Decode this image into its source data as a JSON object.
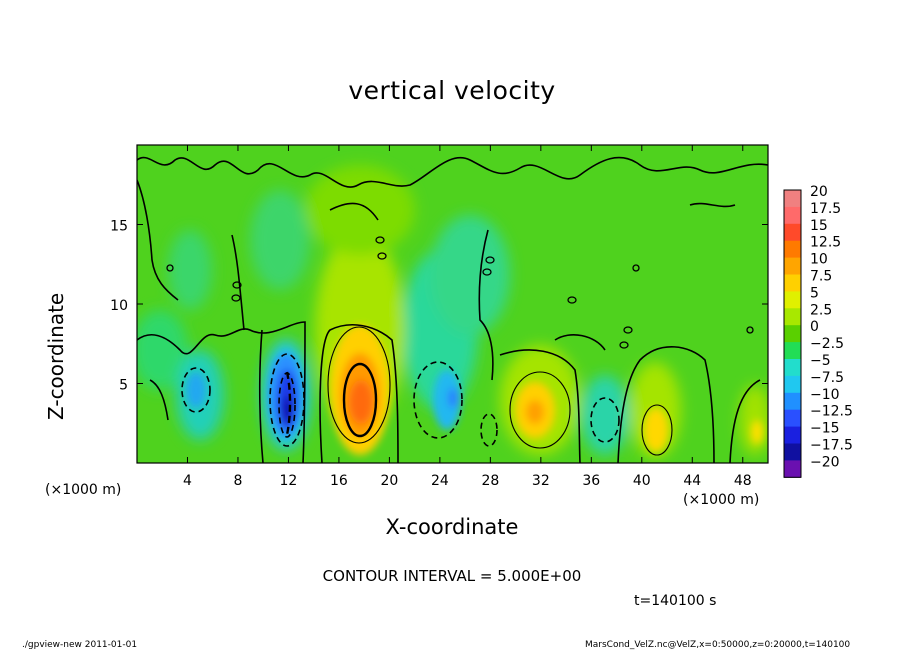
{
  "chart_data": {
    "type": "heatmap",
    "title": "vertical velocity",
    "xlabel": "X-coordinate",
    "ylabel": "Z-coordinate",
    "x_unit_label": "(×1000 m)",
    "xlim": [
      0,
      50
    ],
    "ylim": [
      0,
      20
    ],
    "xticks": [
      4,
      8,
      12,
      16,
      20,
      24,
      28,
      32,
      36,
      40,
      44,
      48
    ],
    "yticks": [
      5,
      10,
      15
    ],
    "contour_interval_text": "CONTOUR INTERVAL = 5.000E+00",
    "time_text": "t=140100 s",
    "colorbar": {
      "labels": [
        "20",
        "17.5",
        "15",
        "12.5",
        "10",
        "7.5",
        "5",
        "2.5",
        "0",
        "-2.5",
        "-5",
        "-7.5",
        "-10",
        "-12.5",
        "-15",
        "-17.5",
        "-20"
      ],
      "colors": [
        "#f08080",
        "#ff6a6a",
        "#ff4a2a",
        "#ff7a00",
        "#ffa500",
        "#ffd000",
        "#e0f000",
        "#a8e800",
        "#5ad000",
        "#22dd55",
        "#22ddcc",
        "#20c8f0",
        "#2090ff",
        "#2a50ff",
        "#1a20e0",
        "#1010a0",
        "#6a10b0"
      ]
    },
    "features": [
      {
        "x": 4.8,
        "z": 4.5,
        "value": -10,
        "note": "downdraft"
      },
      {
        "x": 11.8,
        "z": 3.5,
        "value": -17,
        "note": "strong downdraft"
      },
      {
        "x": 17.8,
        "z": 3.8,
        "value": 12,
        "note": "strong updraft"
      },
      {
        "x": 24.8,
        "z": 4.0,
        "value": -8,
        "note": "downdraft"
      },
      {
        "x": 31.2,
        "z": 3.2,
        "value": 8,
        "note": "updraft"
      },
      {
        "x": 35.8,
        "z": 2.6,
        "value": -6,
        "note": "weak downdraft"
      },
      {
        "x": 40.8,
        "z": 2.0,
        "value": 8,
        "note": "updraft"
      },
      {
        "x": 48.8,
        "z": 2.0,
        "value": 5,
        "note": "weak updraft"
      }
    ]
  },
  "footer": {
    "left": "./gpview-new 2011-01-01",
    "right": "MarsCond_VelZ.nc@VelZ,x=0:50000,z=0:20000,t=140100"
  }
}
